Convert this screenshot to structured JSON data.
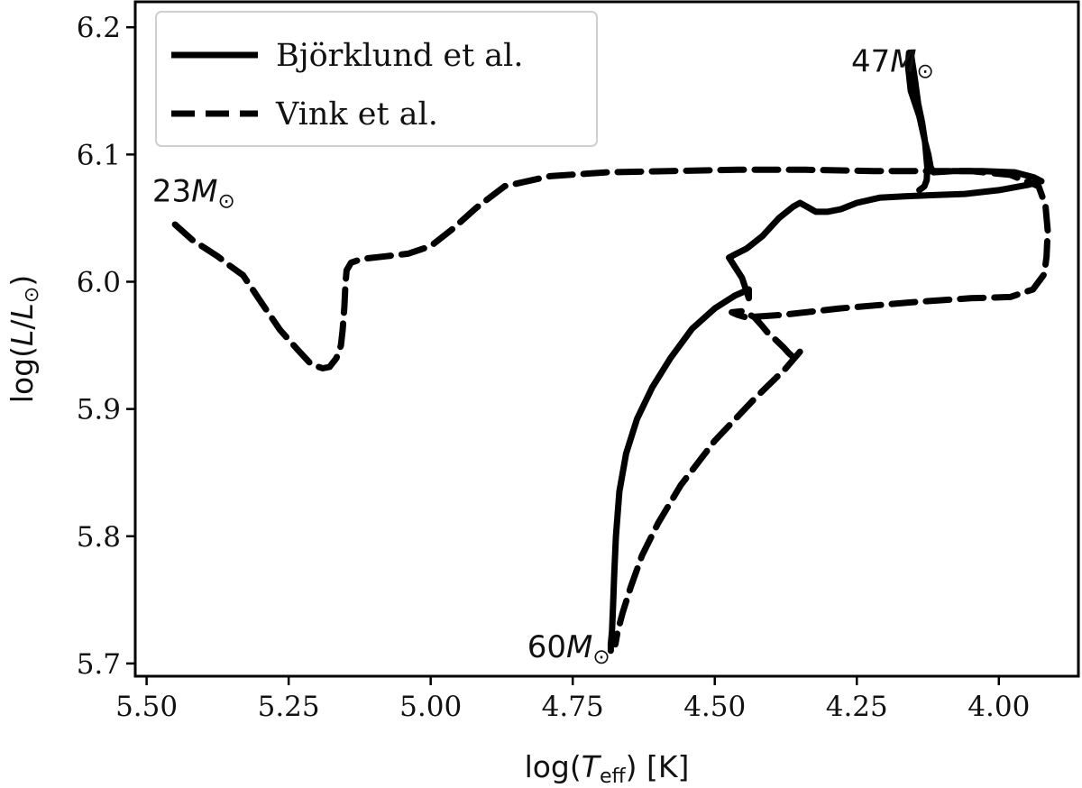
{
  "chart_data": {
    "type": "line",
    "xlabel": "log(T_eff) [K]",
    "ylabel": "log(L/L_⊙)",
    "xlim": [
      5.52,
      3.86
    ],
    "ylim": [
      5.69,
      6.22
    ],
    "x_inverted": true,
    "xticks": [
      "5.50",
      "5.25",
      "5.00",
      "4.75",
      "4.50",
      "4.25",
      "4.00"
    ],
    "yticks": [
      "5.7",
      "5.8",
      "5.9",
      "6.0",
      "6.1",
      "6.2"
    ],
    "legend": {
      "placement": "top-left",
      "entries": [
        "Björklund et al.",
        "Vink et al."
      ]
    },
    "annotations": [
      {
        "text": "23",
        "x": 5.49,
        "y": 6.063
      },
      {
        "text": "47",
        "x": 4.26,
        "y": 6.165
      },
      {
        "text": "60",
        "x": 4.83,
        "y": 5.705
      }
    ],
    "series": [
      {
        "name": "Björklund et al.",
        "style": "solid",
        "x": [
          4.683,
          4.683,
          4.681,
          4.679,
          4.677,
          4.674,
          4.668,
          4.656,
          4.637,
          4.61,
          4.578,
          4.54,
          4.5,
          4.465,
          4.44,
          4.44,
          4.452,
          4.475,
          4.462,
          4.444,
          4.416,
          4.387,
          4.362,
          4.35,
          4.338,
          4.322,
          4.302,
          4.278,
          4.25,
          4.21,
          4.17,
          4.12,
          4.06,
          4.0,
          3.95,
          3.925,
          3.938,
          3.972,
          4.03,
          4.08,
          4.115,
          4.12,
          4.124,
          4.13,
          4.135,
          4.142,
          4.148,
          4.155,
          4.158,
          4.16,
          4.155,
          4.14,
          4.13,
          4.126,
          4.127,
          4.131,
          4.14
        ],
        "y": [
          5.71,
          5.715,
          5.725,
          5.745,
          5.77,
          5.8,
          5.835,
          5.865,
          5.892,
          5.917,
          5.94,
          5.963,
          5.979,
          5.989,
          5.994,
          5.987,
          6.003,
          6.019,
          6.022,
          6.026,
          6.036,
          6.05,
          6.059,
          6.062,
          6.059,
          6.055,
          6.055,
          6.057,
          6.062,
          6.066,
          6.067,
          6.068,
          6.069,
          6.072,
          6.076,
          6.079,
          6.082,
          6.086,
          6.087,
          6.087,
          6.086,
          6.09,
          6.1,
          6.11,
          6.125,
          6.14,
          6.16,
          6.18,
          6.18,
          6.17,
          6.15,
          6.13,
          6.11,
          6.09,
          6.08,
          6.075,
          6.072
        ]
      },
      {
        "name": "Vink et al.",
        "style": "dashed",
        "x": [
          5.45,
          5.42,
          5.375,
          5.355,
          5.33,
          5.3,
          5.265,
          5.235,
          5.21,
          5.19,
          5.178,
          5.166,
          5.158,
          5.155,
          5.152,
          5.15,
          5.148,
          5.14,
          5.12,
          5.08,
          5.04,
          5.0,
          4.96,
          4.92,
          4.87,
          4.79,
          4.69,
          4.58,
          4.46,
          4.34,
          4.22,
          4.12,
          4.05,
          3.98,
          3.93,
          3.918,
          3.914,
          3.916,
          3.92,
          3.94,
          3.98,
          4.05,
          4.15,
          4.28,
          4.38,
          4.445,
          4.46,
          4.47,
          4.45,
          4.43,
          4.418,
          4.405,
          4.392,
          4.378,
          4.37,
          4.36,
          4.35,
          4.375,
          4.43,
          4.5,
          4.56,
          4.6,
          4.628,
          4.648,
          4.662,
          4.671,
          4.675
        ],
        "y": [
          6.045,
          6.033,
          6.02,
          6.013,
          6.005,
          5.985,
          5.962,
          5.947,
          5.935,
          5.932,
          5.933,
          5.94,
          5.95,
          5.962,
          5.98,
          5.998,
          6.009,
          6.015,
          6.018,
          6.02,
          6.022,
          6.028,
          6.042,
          6.058,
          6.075,
          6.083,
          6.086,
          6.087,
          6.088,
          6.088,
          6.087,
          6.087,
          6.087,
          6.084,
          6.075,
          6.06,
          6.04,
          6.02,
          6.006,
          5.994,
          5.988,
          5.987,
          5.984,
          5.979,
          5.974,
          5.972,
          5.974,
          5.976,
          5.977,
          5.972,
          5.966,
          5.959,
          5.954,
          5.948,
          5.944,
          5.94,
          5.945,
          5.932,
          5.908,
          5.875,
          5.84,
          5.81,
          5.785,
          5.76,
          5.74,
          5.725,
          5.715
        ]
      }
    ]
  }
}
